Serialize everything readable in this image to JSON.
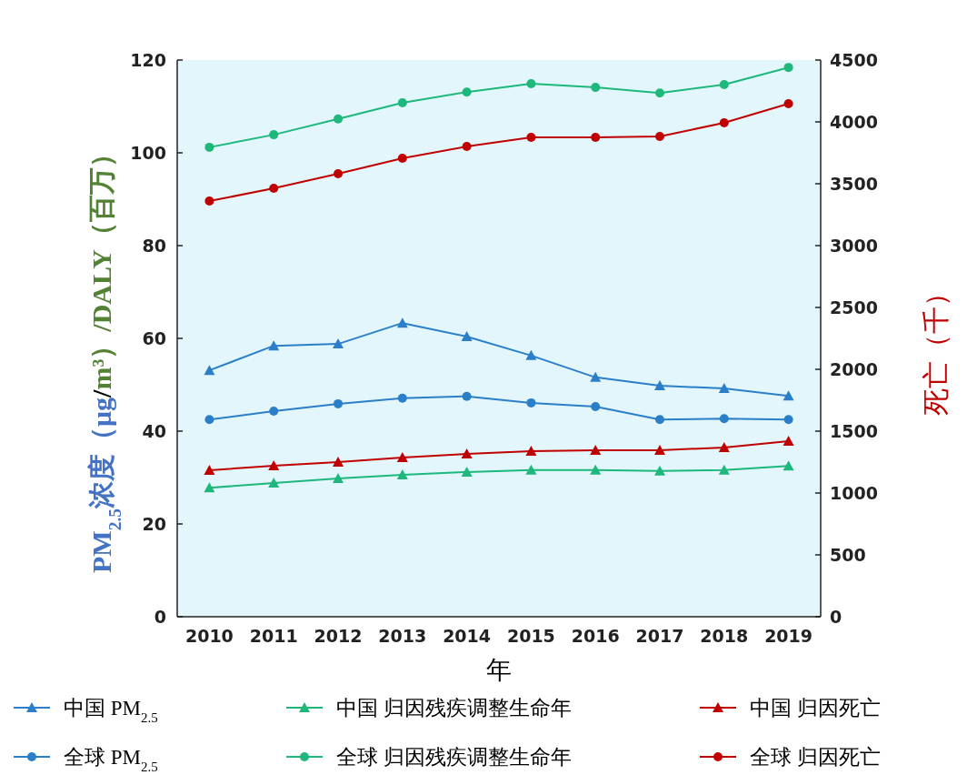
{
  "chart_data": {
    "type": "line",
    "categories": [
      "2010",
      "2011",
      "2012",
      "2013",
      "2014",
      "2015",
      "2016",
      "2017",
      "2018",
      "2019"
    ],
    "xlabel": "年",
    "ylabel": "PM$_{2.5}$浓度（μg/m³）/DALY（百万）",
    "y2label": "死亡（千）",
    "ylim": [
      0,
      120
    ],
    "yticks": [
      0,
      20,
      40,
      60,
      80,
      100,
      120
    ],
    "y2lim": [
      0,
      4500
    ],
    "y2ticks": [
      0,
      500,
      1000,
      1500,
      2000,
      2500,
      3000,
      3500,
      4000,
      4500
    ],
    "grid": false,
    "legend": "bottom",
    "series": [
      {
        "name": "中国  PM$_{2.5}$",
        "color": "#2a7fc8",
        "marker": "triangle",
        "values": [
          53.1,
          58.4,
          58.8,
          63.3,
          60.4,
          56.3,
          51.6,
          49.8,
          49.2,
          47.6
        ]
      },
      {
        "name": "全球  PM$_{2.5}$",
        "color": "#2a7fc8",
        "marker": "circle",
        "values": [
          42.5,
          44.3,
          45.9,
          47.1,
          47.5,
          46.1,
          45.3,
          42.5,
          42.7,
          42.5
        ]
      },
      {
        "name": "中国  归因残疾调整生命年",
        "color": "#1db87a",
        "marker": "triangle",
        "values": [
          27.8,
          28.8,
          29.8,
          30.6,
          31.2,
          31.6,
          31.6,
          31.4,
          31.6,
          32.5
        ]
      },
      {
        "name": "全球  归因残疾调整生命年",
        "color": "#1db87a",
        "marker": "circle",
        "values": [
          101.2,
          103.9,
          107.3,
          110.8,
          113.1,
          114.9,
          114.1,
          112.9,
          114.7,
          118.4
        ]
      },
      {
        "name": "中国  归因死亡",
        "color": "#c00000",
        "marker": "triangle",
        "axis": "y2",
        "values": [
          1184,
          1221,
          1250,
          1287,
          1316,
          1338,
          1346,
          1346,
          1368,
          1419
        ]
      },
      {
        "name": "全球  归因死亡",
        "color": "#c00000",
        "marker": "circle",
        "axis": "y2",
        "values": [
          3360,
          3463,
          3581,
          3706,
          3801,
          3875,
          3875,
          3882,
          3993,
          4147
        ]
      }
    ]
  }
}
